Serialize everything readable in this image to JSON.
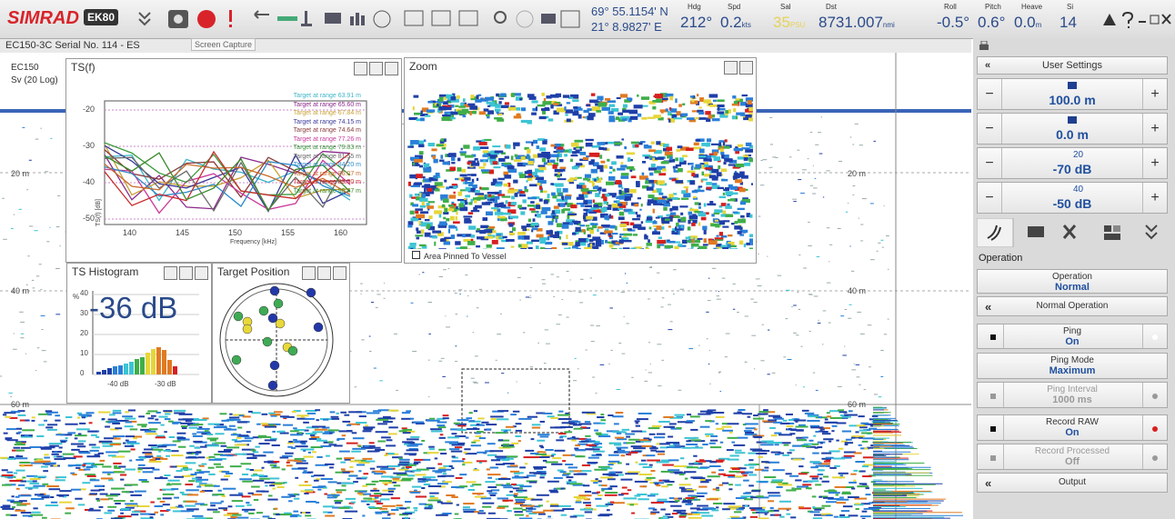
{
  "toolbar": {
    "brand": "SIMRAD",
    "model": "EK80",
    "tooltip": "Screen Capture",
    "position": {
      "latitude": "69° 55.1154' N",
      "longitude": "21° 8.9827' E"
    },
    "readouts": [
      {
        "label": "Hdg",
        "value": "212",
        "unit": "°"
      },
      {
        "label": "Spd",
        "value": "0.2",
        "unit": "kts"
      },
      {
        "label": "Sal",
        "value": "35",
        "unit": "PSU"
      },
      {
        "label": "Dst",
        "value": "8731.007",
        "unit": "nmi"
      },
      {
        "label": "Roll",
        "value": "-0.5",
        "unit": "°"
      },
      {
        "label": "Pitch",
        "value": "0.6",
        "unit": "°"
      },
      {
        "label": "Heave",
        "value": "0.0",
        "unit": "m"
      },
      {
        "label": "Si",
        "value": "14"
      }
    ]
  },
  "echogram": {
    "title": "EC150-3C Serial No. 114 - ES",
    "channel": "EC150",
    "variable": "Sv (20 Log)",
    "depth_labels": [
      "20 m",
      "40 m",
      "60 m"
    ]
  },
  "ts_f": {
    "title": "TS(f)",
    "y_label": "TS(f) [dB]",
    "x_label": "Frequency [kHz]",
    "yticks": [
      -20,
      -30,
      -40,
      -50
    ],
    "xticks": [
      140,
      145,
      150,
      155,
      160
    ],
    "legend": [
      "Target at range 63.91 m",
      "Target at range 65.60 m",
      "Target at range 67.84 m",
      "Target at range 74.15 m",
      "Target at range 74.64 m",
      "Target at range 77.26 m",
      "Target at range 79.83 m",
      "Target at range 81.55 m",
      "Target at range 84.20 m",
      "Target at range 86.07 m",
      "Target at range 89.30 m",
      "Target at range 90.47 m"
    ]
  },
  "zoom": {
    "title": "Zoom",
    "pinned": "Area Pinned To Vessel"
  },
  "ts_histogram": {
    "title": "TS Histogram",
    "value": "-36 dB",
    "y_unit": "%",
    "yticks": [
      40,
      30,
      20,
      10,
      0
    ],
    "xticks": [
      "-40 dB",
      "-30 dB"
    ]
  },
  "target_position": {
    "title": "Target Position"
  },
  "side_panel": {
    "user_settings": "User Settings",
    "range": "100.0 m",
    "start_range": "0.0 m",
    "tvg20": {
      "exp": "20",
      "gain": "-70 dB"
    },
    "tvg40": {
      "exp": "40",
      "gain": "-50 dB"
    },
    "section": "Operation",
    "buttons": [
      {
        "label": "Operation",
        "state": "Normal"
      },
      {
        "label": "Normal Operation"
      },
      {
        "label": "Ping",
        "state": "On"
      },
      {
        "label": "Ping Mode",
        "state": "Maximum"
      },
      {
        "label": "Ping Interval",
        "state": "1000 ms"
      },
      {
        "label": "Record RAW",
        "state": "On"
      },
      {
        "label": "Record Processed",
        "state": "Off"
      },
      {
        "label": "Output"
      }
    ]
  }
}
